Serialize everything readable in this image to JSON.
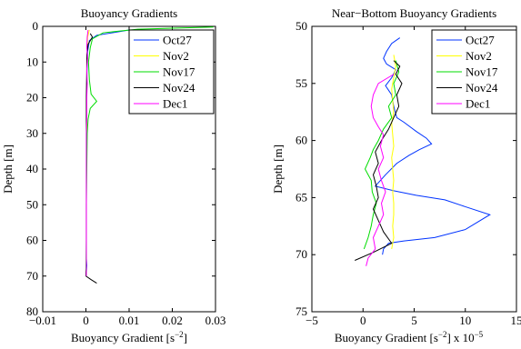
{
  "chart_data": [
    {
      "type": "line",
      "title": "Buoyancy Gradients",
      "xlabel": "Buoyancy Gradient [s",
      "xlabel_sup": "−2",
      "xlabel_close": "]",
      "ylabel": "Depth [m]",
      "xlim": [
        -0.01,
        0.03
      ],
      "ylim": [
        0,
        80
      ],
      "y_reversed": true,
      "xticks": [
        -0.01,
        0,
        0.01,
        0.02,
        0.03
      ],
      "xtick_labels": [
        "−0.01",
        "0",
        "0.01",
        "0.02",
        "0.03"
      ],
      "yticks": [
        0,
        10,
        20,
        30,
        40,
        50,
        60,
        70,
        80
      ],
      "ytick_labels": [
        "0",
        "10",
        "20",
        "30",
        "40",
        "50",
        "60",
        "70",
        "80"
      ],
      "legend_position": "top-right",
      "series": [
        {
          "name": "Oct27",
          "color": "#0033ff",
          "points": [
            [
              0.0102,
              1.0
            ],
            [
              0.0025,
              2.5
            ],
            [
              0.0008,
              4
            ],
            [
              0.0004,
              7
            ],
            [
              0.0003,
              10
            ],
            [
              0.0002,
              15
            ],
            [
              0.0002,
              20
            ],
            [
              0.0001,
              25
            ],
            [
              0.0001,
              30
            ],
            [
              0.0001,
              40
            ],
            [
              0.0001,
              50
            ],
            [
              0.0001,
              60
            ],
            [
              0.0001,
              65
            ],
            [
              0.0002,
              67
            ],
            [
              0.0001,
              69
            ],
            [
              0.0001,
              70
            ]
          ]
        },
        {
          "name": "Nov2",
          "color": "#ffff00",
          "points": [
            [
              0.0008,
              1
            ],
            [
              0.0004,
              3
            ],
            [
              0.0003,
              6
            ],
            [
              0.0002,
              10
            ],
            [
              0.0002,
              15
            ],
            [
              0.0002,
              20
            ],
            [
              0.0002,
              30
            ],
            [
              0.0001,
              40
            ],
            [
              0.0001,
              50
            ],
            [
              0.0001,
              60
            ],
            [
              0.0001,
              70
            ]
          ]
        },
        {
          "name": "Nov17",
          "color": "#00dd00",
          "points": [
            [
              0.0295,
              0.2
            ],
            [
              0.012,
              0.8
            ],
            [
              0.004,
              1.8
            ],
            [
              0.0015,
              3.5
            ],
            [
              0.001,
              6
            ],
            [
              0.0006,
              10
            ],
            [
              0.0008,
              15
            ],
            [
              0.0012,
              19
            ],
            [
              0.0025,
              21
            ],
            [
              0.001,
              23
            ],
            [
              0.0005,
              26
            ],
            [
              0.0003,
              30
            ],
            [
              0.0002,
              40
            ],
            [
              0.0001,
              50
            ],
            [
              0.0001,
              60
            ],
            [
              0.0,
              69
            ],
            [
              0.0,
              70
            ]
          ]
        },
        {
          "name": "Nov24",
          "color": "#000000",
          "points": [
            [
              0.001,
              2
            ],
            [
              0.0015,
              3
            ],
            [
              0.0005,
              5
            ],
            [
              0.0002,
              8
            ],
            [
              0.0002,
              12
            ],
            [
              0.0001,
              20
            ],
            [
              0.0001,
              30
            ],
            [
              0.0001,
              40
            ],
            [
              0.0001,
              50
            ],
            [
              0.0001,
              60
            ],
            [
              0.0001,
              68
            ],
            [
              0.0,
              69
            ],
            [
              0.0,
              70
            ],
            [
              0.0012,
              71
            ],
            [
              0.0025,
              72
            ]
          ]
        },
        {
          "name": "Dec1",
          "color": "#ff00ff",
          "points": [
            [
              0.0005,
              1
            ],
            [
              0.0003,
              3
            ],
            [
              0.0002,
              6
            ],
            [
              0.0004,
              9
            ],
            [
              0.0002,
              12
            ],
            [
              0.0003,
              16
            ],
            [
              0.0002,
              20
            ],
            [
              0.0002,
              26
            ],
            [
              0.0001,
              30
            ],
            [
              0.0001,
              40
            ],
            [
              0.0001,
              50
            ],
            [
              0.0001,
              60
            ],
            [
              0.0001,
              70
            ]
          ]
        }
      ]
    },
    {
      "type": "line",
      "title": "Near−Bottom Buoyancy Gradients",
      "xlabel": "Buoyancy Gradient [s",
      "xlabel_sup": "−2",
      "xlabel_close": "]",
      "x_scale_label": "x 10",
      "x_scale_exp": "−5",
      "ylabel": "Depth [m]",
      "xlim": [
        -5,
        15
      ],
      "ylim": [
        50,
        75
      ],
      "y_reversed": true,
      "xticks": [
        -5,
        0,
        5,
        10,
        15
      ],
      "xtick_labels": [
        "−5",
        "0",
        "5",
        "10",
        "15"
      ],
      "yticks": [
        50,
        55,
        60,
        65,
        70,
        75
      ],
      "ytick_labels": [
        "50",
        "55",
        "60",
        "65",
        "70",
        "75"
      ],
      "legend_position": "top-right",
      "series": [
        {
          "name": "Oct27",
          "color": "#0033ff",
          "points": [
            [
              3.6,
              51.0
            ],
            [
              2.8,
              51.5
            ],
            [
              2.3,
              52.2
            ],
            [
              2.0,
              52.8
            ],
            [
              2.3,
              53.3
            ],
            [
              3.2,
              53.8
            ],
            [
              2.8,
              54.5
            ],
            [
              2.2,
              55.2
            ],
            [
              2.8,
              56.0
            ],
            [
              3.0,
              57.0
            ],
            [
              3.3,
              58.0
            ],
            [
              4.0,
              58.4
            ],
            [
              5.2,
              59.2
            ],
            [
              6.2,
              59.8
            ],
            [
              6.7,
              60.3
            ],
            [
              5.5,
              60.8
            ],
            [
              4.5,
              61.3
            ],
            [
              3.3,
              62.0
            ],
            [
              2.2,
              63.0
            ],
            [
              1.2,
              64.0
            ],
            [
              3.0,
              64.4
            ],
            [
              5.2,
              64.8
            ],
            [
              8.0,
              65.2
            ],
            [
              10.0,
              65.8
            ],
            [
              12.4,
              66.5
            ],
            [
              10.0,
              67.8
            ],
            [
              7.0,
              68.5
            ],
            [
              4.0,
              68.8
            ],
            [
              2.5,
              69.0
            ],
            [
              2.0,
              69.5
            ],
            [
              1.9,
              70.0
            ]
          ]
        },
        {
          "name": "Nov2",
          "color": "#ffff00",
          "points": [
            [
              3.0,
              52.5
            ],
            [
              3.2,
              53.5
            ],
            [
              3.0,
              54.5
            ],
            [
              2.8,
              55.5
            ],
            [
              2.9,
              56.5
            ],
            [
              3.0,
              57.5
            ],
            [
              2.8,
              58.5
            ],
            [
              2.9,
              59.5
            ],
            [
              3.0,
              60.5
            ],
            [
              2.8,
              61.5
            ],
            [
              2.9,
              62.5
            ],
            [
              3.0,
              63.5
            ],
            [
              2.9,
              64.5
            ],
            [
              3.0,
              65.5
            ],
            [
              3.0,
              66.5
            ],
            [
              2.9,
              67.5
            ],
            [
              3.0,
              68.5
            ],
            [
              2.8,
              69.5
            ]
          ]
        },
        {
          "name": "Nov17",
          "color": "#00dd00",
          "points": [
            [
              3.2,
              53.0
            ],
            [
              3.5,
              54.0
            ],
            [
              3.0,
              55.0
            ],
            [
              3.2,
              56.0
            ],
            [
              2.5,
              57.0
            ],
            [
              2.8,
              58.0
            ],
            [
              2.0,
              59.0
            ],
            [
              1.5,
              60.0
            ],
            [
              1.0,
              60.8
            ],
            [
              0.7,
              61.5
            ],
            [
              0.2,
              62.5
            ],
            [
              0.8,
              63.5
            ],
            [
              0.9,
              64.5
            ],
            [
              1.3,
              65.5
            ],
            [
              1.0,
              66.5
            ],
            [
              0.8,
              67.5
            ],
            [
              0.5,
              68.5
            ],
            [
              0.1,
              69.5
            ]
          ]
        },
        {
          "name": "Nov24",
          "color": "#000000",
          "points": [
            [
              3.0,
              53.0
            ],
            [
              3.6,
              53.5
            ],
            [
              3.2,
              54.2
            ],
            [
              3.8,
              55.0
            ],
            [
              3.3,
              56.0
            ],
            [
              3.5,
              57.0
            ],
            [
              3.0,
              58.0
            ],
            [
              2.5,
              59.0
            ],
            [
              1.8,
              60.0
            ],
            [
              1.2,
              61.0
            ],
            [
              1.5,
              62.0
            ],
            [
              1.0,
              63.0
            ],
            [
              1.3,
              64.0
            ],
            [
              1.5,
              65.0
            ],
            [
              1.0,
              66.0
            ],
            [
              1.5,
              67.0
            ],
            [
              2.0,
              68.0
            ],
            [
              2.8,
              69.0
            ],
            [
              1.0,
              69.8
            ],
            [
              -0.8,
              70.5
            ]
          ]
        },
        {
          "name": "Dec1",
          "color": "#ff00ff",
          "points": [
            [
              3.0,
              54.2
            ],
            [
              1.5,
              55.0
            ],
            [
              1.0,
              56.0
            ],
            [
              0.8,
              57.0
            ],
            [
              1.0,
              58.0
            ],
            [
              1.5,
              58.8
            ],
            [
              2.0,
              59.5
            ],
            [
              1.7,
              60.5
            ],
            [
              2.0,
              61.5
            ],
            [
              1.5,
              62.5
            ],
            [
              1.8,
              63.5
            ],
            [
              2.2,
              64.5
            ],
            [
              1.8,
              65.5
            ],
            [
              2.0,
              66.5
            ],
            [
              1.5,
              67.5
            ],
            [
              1.0,
              68.5
            ],
            [
              1.2,
              69.5
            ],
            [
              0.5,
              70.3
            ],
            [
              0.3,
              71.0
            ]
          ]
        }
      ]
    }
  ]
}
